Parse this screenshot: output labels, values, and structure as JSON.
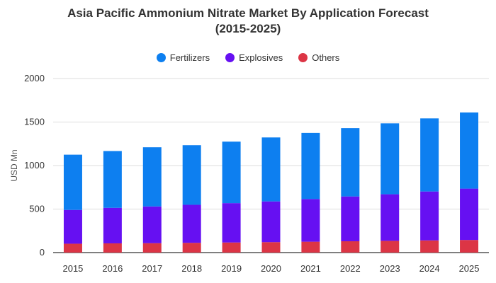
{
  "chart_data": {
    "type": "bar",
    "stacked": true,
    "title_line1": "Asia Pacific Ammonium Nitrate Market By Application Forecast",
    "title_line2": "(2015-2025)",
    "xlabel": "",
    "ylabel": "USD Mn",
    "ylim": [
      0,
      2000
    ],
    "yticks": [
      0,
      500,
      1000,
      1500,
      2000
    ],
    "grid": true,
    "legend_placement": "top-center",
    "categories": [
      "2015",
      "2016",
      "2017",
      "2018",
      "2019",
      "2020",
      "2021",
      "2022",
      "2023",
      "2024",
      "2025"
    ],
    "series": [
      {
        "name": "Others",
        "color": "#dc3545",
        "values": [
          102,
          106,
          108,
          112,
          116,
          120,
          125,
          130,
          135,
          140,
          145
        ]
      },
      {
        "name": "Explosives",
        "color": "#6610f2",
        "values": [
          388,
          408,
          422,
          437,
          452,
          468,
          490,
          515,
          535,
          562,
          590
        ]
      },
      {
        "name": "Fertilizers",
        "color": "#0d7ff0",
        "values": [
          635,
          653,
          680,
          685,
          707,
          735,
          760,
          785,
          815,
          840,
          875
        ]
      }
    ],
    "legend_order": [
      "Fertilizers",
      "Explosives",
      "Others"
    ]
  }
}
